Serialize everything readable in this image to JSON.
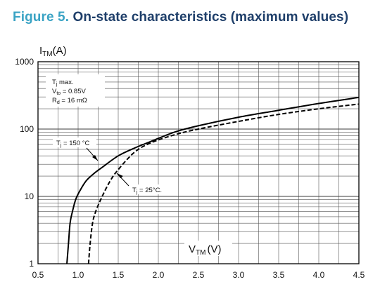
{
  "figure": {
    "number": "Figure 5.",
    "title": "On-state characteristics (maximum values)"
  },
  "chart_data": {
    "type": "line",
    "title": "On-state characteristics (maximum values)",
    "ylabel": {
      "main": "I",
      "sub": "TM",
      "unit": "(A)"
    },
    "xlabel": {
      "main": "V",
      "sub": "TM",
      "unit": "(V)"
    },
    "x_scale": "linear",
    "y_scale": "log",
    "xlim": [
      0.5,
      4.5
    ],
    "ylim": [
      1,
      1000
    ],
    "grid": true,
    "x_ticks": [
      "0.5",
      "1.0",
      "1.5",
      "2.0",
      "2.5",
      "3.0",
      "3.5",
      "4.0",
      "4.5"
    ],
    "y_ticks": [
      "1",
      "10",
      "100",
      "1000"
    ],
    "conditions": {
      "line1_main": "T",
      "line1_sub": "j",
      "line1_rest": " max.",
      "line2_main": "V",
      "line2_sub": "to",
      "line2_rest": " = 0.85V",
      "line3_main": "R",
      "line3_sub": "d",
      "line3_rest": " = 16 mΩ"
    },
    "series": [
      {
        "name": "Tj = 150 °C",
        "label_main": "T",
        "label_sub": "j",
        "label_rest": " = 150 °C",
        "style": "solid",
        "x": [
          0.86,
          0.88,
          0.9,
          0.93,
          0.97,
          1.02,
          1.1,
          1.2,
          1.3,
          1.5,
          1.7,
          1.9,
          2.2,
          2.5,
          3.0,
          3.5,
          4.0,
          4.5
        ],
        "y": [
          1,
          2,
          4,
          6,
          9,
          12,
          17,
          22,
          27,
          40,
          52,
          65,
          90,
          112,
          150,
          190,
          240,
          295
        ]
      },
      {
        "name": "Tj = 25°C.",
        "label_main": "T",
        "label_sub": "j",
        "label_rest": " = 25°C.",
        "style": "dashed",
        "x": [
          1.13,
          1.15,
          1.18,
          1.22,
          1.3,
          1.4,
          1.5,
          1.7,
          1.9,
          2.2,
          2.5,
          3.0,
          3.5,
          4.0,
          4.5
        ],
        "y": [
          1,
          2,
          4,
          6,
          10,
          17,
          25,
          45,
          62,
          82,
          100,
          130,
          165,
          200,
          235
        ]
      }
    ]
  }
}
